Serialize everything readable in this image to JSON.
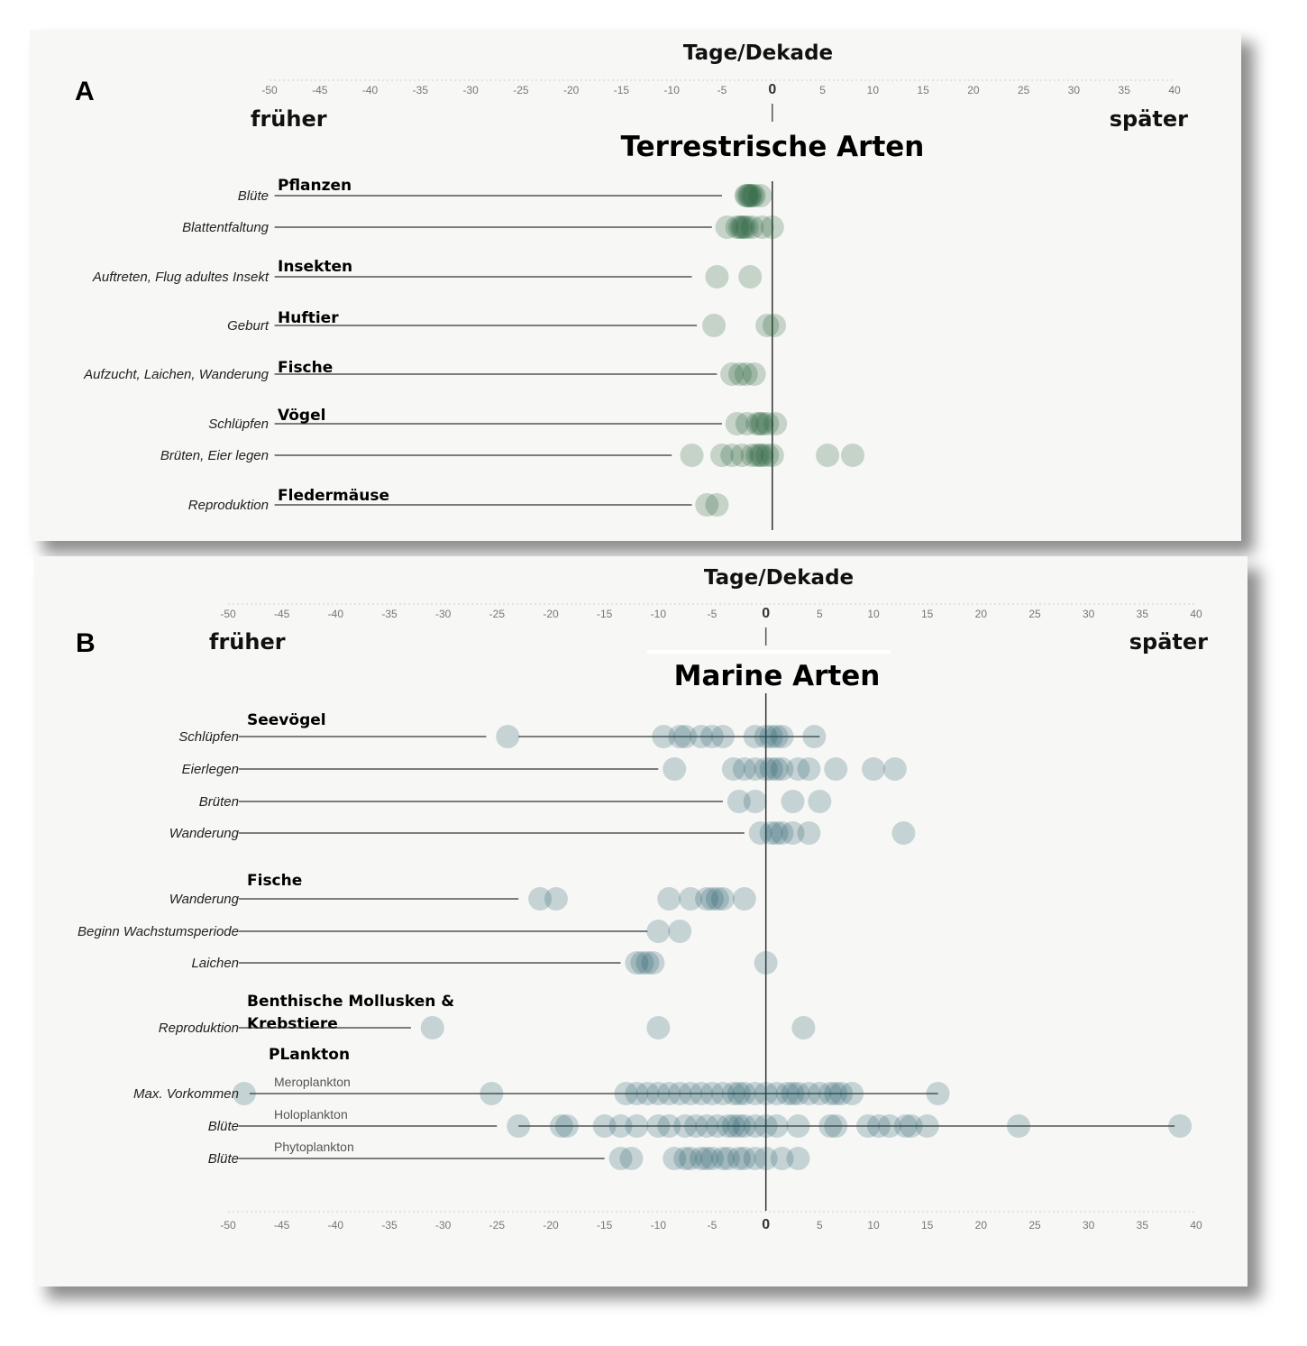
{
  "panels": [
    {
      "letter": "A",
      "axis_title": "Tage/Dekade",
      "earlier_label": "früher",
      "later_label": "später",
      "heading": "Terrestrische Arten",
      "ticks": [
        -50,
        -45,
        -40,
        -35,
        -30,
        -25,
        -20,
        -15,
        -10,
        -5,
        0,
        5,
        10,
        15,
        20,
        25,
        30,
        35,
        40
      ],
      "color": "#1e5a36",
      "groups": [
        {
          "name": "Pflanzen"
        },
        {
          "name": "Insekten"
        },
        {
          "name": "Huftier"
        },
        {
          "name": "Fische"
        },
        {
          "name": "Vögel"
        },
        {
          "name": "Fledermäuse"
        }
      ],
      "rows": [
        {
          "label": "Blüte",
          "group": "Pflanzen",
          "line_from": -49.5,
          "line_to": -5,
          "points": [
            -2.5,
            -2.2,
            -2,
            -1.8,
            -2.6,
            -1.2,
            -2.3
          ]
        },
        {
          "label": "Blattentfaltung",
          "line_from": -49.5,
          "line_to": -6,
          "points": [
            -4.5,
            -3.5,
            -3,
            -2.5,
            -2,
            -1,
            0,
            -3.2,
            -2.8
          ]
        },
        {
          "label": "Auftreten, Flug adultes Insekt",
          "group": "Insekten",
          "line_from": -49.5,
          "line_to": -8,
          "points": [
            -5.5,
            -2.2
          ]
        },
        {
          "label": "Geburt",
          "group": "Huftier",
          "line_from": -49.5,
          "line_to": -7.5,
          "points": [
            -5.8,
            -0.5,
            0.2
          ]
        },
        {
          "label": "Aufzucht, Laichen, Wanderung",
          "group": "Fische",
          "line_from": -49.5,
          "line_to": -5.5,
          "points": [
            -4,
            -3.2,
            -2.6,
            -1.8
          ]
        },
        {
          "label": "Schlüpfen",
          "group": "Vögel",
          "line_from": -49.5,
          "line_to": -5,
          "points": [
            -3.5,
            -2.5,
            -1.5,
            -1,
            -0.5,
            0.3,
            -1.2
          ]
        },
        {
          "label": "Brüten, Eier legen",
          "line_from": -49.5,
          "line_to": -10,
          "points": [
            -8,
            -5,
            -4,
            -3,
            -2,
            -1.5,
            -1.2,
            -1,
            -0.5,
            0,
            5.5,
            8
          ]
        },
        {
          "label": "Reproduktion",
          "group": "Fledermäuse",
          "line_from": -49.5,
          "line_to": -8,
          "points": [
            -6.5,
            -5.5
          ]
        }
      ]
    },
    {
      "letter": "B",
      "axis_title": "Tage/Dekade",
      "earlier_label": "früher",
      "later_label": "später",
      "heading": "Marine Arten",
      "ticks": [
        -50,
        -45,
        -40,
        -35,
        -30,
        -25,
        -20,
        -15,
        -10,
        -5,
        0,
        5,
        10,
        15,
        20,
        25,
        30,
        35,
        40
      ],
      "color": "#1a5566",
      "groups": [
        {
          "name": "Seevögel"
        },
        {
          "name": "Fische"
        },
        {
          "name": "Benthische Mollusken &"
        },
        {
          "name": "Krebstiere"
        },
        {
          "name": "PLankton"
        }
      ],
      "rows": [
        {
          "label": "Schlüpfen",
          "group": "Seevögel",
          "line_from": -49,
          "line_to": -26,
          "points": [
            -24,
            -9.5,
            -8,
            -7.5,
            -6,
            -5,
            -4,
            -1,
            0,
            0.5,
            1,
            1.5,
            4.5
          ],
          "line2_from": -23,
          "line2_to": 5
        },
        {
          "label": "Eierlegen",
          "line_from": -49,
          "line_to": -10,
          "points": [
            -8.5,
            -3,
            -2,
            -1,
            0,
            0.5,
            1,
            1.5,
            3,
            4,
            6.5,
            10,
            12
          ]
        },
        {
          "label": "Brüten",
          "line_from": -49,
          "line_to": -4,
          "points": [
            -2.5,
            -1,
            2.5,
            5
          ]
        },
        {
          "label": "Wanderung",
          "line_from": -49,
          "line_to": -2,
          "points": [
            -0.5,
            0.5,
            1,
            1.5,
            2.5,
            4,
            12.8
          ]
        },
        {
          "label": "Wanderung",
          "group": "Fische",
          "line_from": -49,
          "line_to": -23,
          "points": [
            -21,
            -19.5,
            -9,
            -7,
            -5.5,
            -5,
            -4.5,
            -4,
            -2
          ]
        },
        {
          "label": "Beginn Wachstumsperiode",
          "line_from": -49,
          "line_to": -11,
          "points": [
            -10,
            -8
          ]
        },
        {
          "label": "Laichen",
          "line_from": -49,
          "line_to": -13.5,
          "points": [
            -12,
            -11.5,
            -11,
            -10.5,
            0
          ]
        },
        {
          "label": "Reproduktion",
          "group": "Benthische Mollusken & Krebstiere",
          "line_from": -49,
          "line_to": -33,
          "points": [
            -31,
            -10,
            3.5
          ]
        },
        {
          "label": "Max. Vorkommen",
          "group": "PLankton",
          "sublabel": "Meroplankton",
          "line_from": -48,
          "line_to": 16,
          "points": [
            -48.5,
            -25.5,
            -13,
            -12,
            -11,
            -10,
            -9,
            -8,
            -7,
            -6,
            -5,
            -4,
            -3,
            -2.5,
            -2,
            -1,
            0,
            1,
            2,
            2.5,
            3,
            4,
            5,
            6,
            6.5,
            7,
            8,
            16
          ]
        },
        {
          "label": "Blüte",
          "sublabel": "Holoplankton",
          "line_from": -49,
          "line_to": -25,
          "points": [
            -23,
            -19,
            -18.5,
            -15,
            -13.5,
            -12,
            -10,
            -9,
            -7.5,
            -6.5,
            -5.5,
            -4.5,
            -3.5,
            -3,
            -2.5,
            -2,
            -1,
            0,
            1,
            3,
            6,
            6.5,
            9.5,
            10.5,
            11.5,
            13,
            13.5,
            15,
            23.5,
            38.5
          ],
          "line2_from": -23,
          "line2_to": 38
        },
        {
          "label": "Blüte",
          "sublabel": "Phytoplankton",
          "line_from": -49,
          "line_to": -15,
          "points": [
            -13.5,
            -12.5,
            -8.5,
            -7.5,
            -7,
            -6,
            -5.5,
            -5,
            -4,
            -3.5,
            -2.5,
            -2,
            -1,
            0,
            1.5,
            3
          ]
        }
      ]
    }
  ]
}
